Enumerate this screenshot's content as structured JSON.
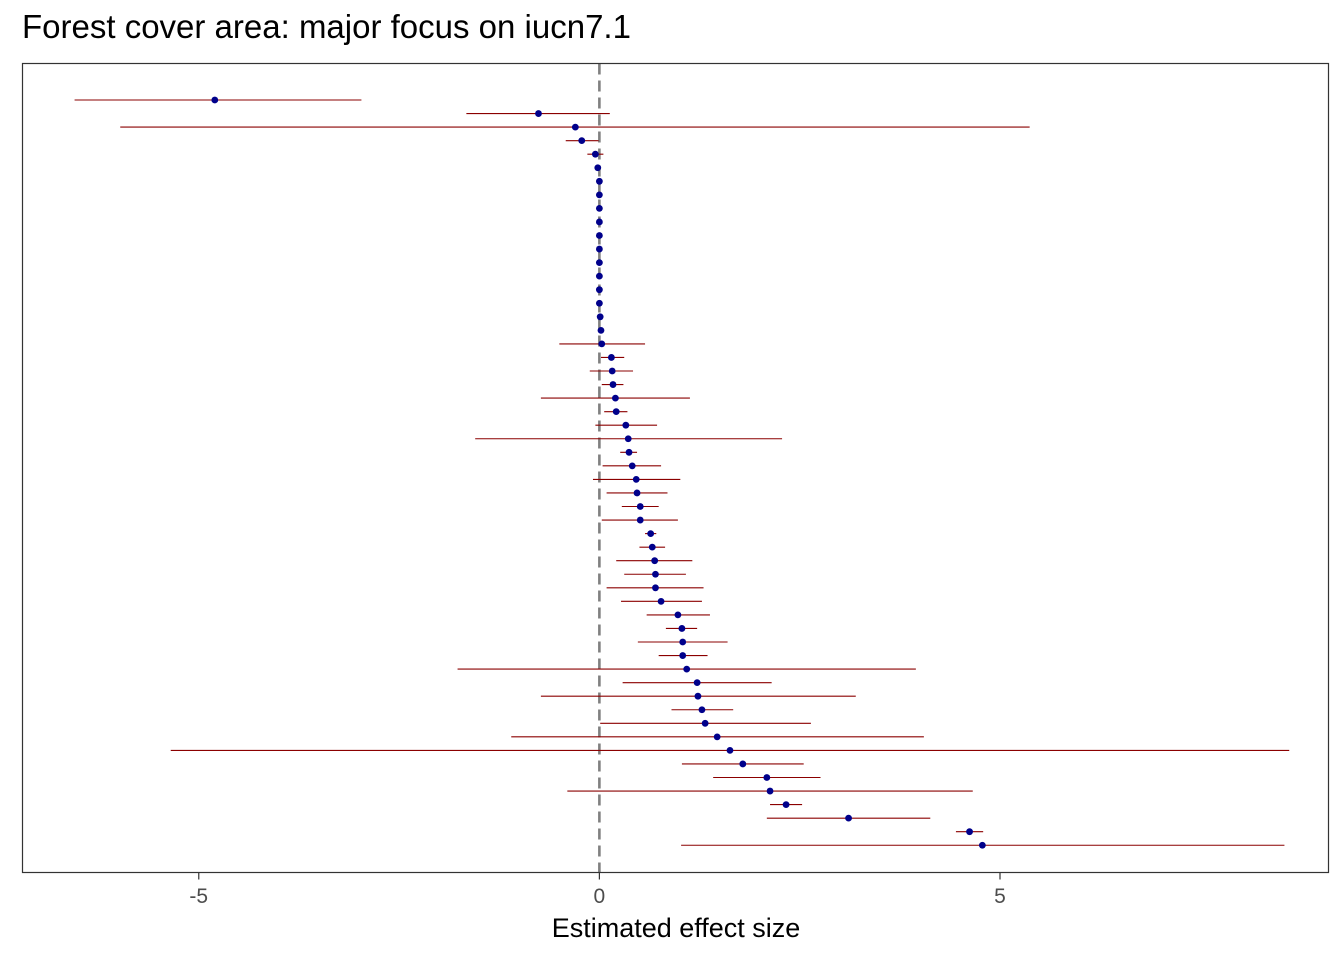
{
  "chart_data": {
    "type": "forest",
    "title": "Forest cover area: major focus on iucn7.1",
    "xlabel": "Estimated effect size",
    "ylabel": "",
    "xlim": [
      -7.2,
      9.1
    ],
    "xticks": [
      -5,
      0,
      5
    ],
    "xtick_labels": [
      "-5",
      "0",
      "5"
    ],
    "reference_line": 0,
    "grid": false,
    "colors": {
      "point": "#00008b",
      "interval": "#8b0000",
      "reference_line": "#808080",
      "panel_border": "#333333",
      "tick_label": "#4d4d4d"
    },
    "points": [
      {
        "estimate": -4.8,
        "lower": -6.55,
        "upper": -2.97
      },
      {
        "estimate": -0.76,
        "lower": -1.66,
        "upper": 0.13
      },
      {
        "estimate": -0.3,
        "lower": -5.98,
        "upper": 5.37
      },
      {
        "estimate": -0.22,
        "lower": -0.42,
        "upper": -0.01
      },
      {
        "estimate": -0.05,
        "lower": -0.15,
        "upper": 0.05
      },
      {
        "estimate": -0.02,
        "lower": -0.03,
        "upper": 0.0
      },
      {
        "estimate": 0.0,
        "lower": -0.01,
        "upper": 0.01
      },
      {
        "estimate": 0.0,
        "lower": -0.01,
        "upper": 0.01
      },
      {
        "estimate": 0.0,
        "lower": -0.01,
        "upper": 0.01
      },
      {
        "estimate": 0.0,
        "lower": -0.01,
        "upper": 0.01
      },
      {
        "estimate": 0.0,
        "lower": -0.01,
        "upper": 0.01
      },
      {
        "estimate": 0.0,
        "lower": -0.01,
        "upper": 0.01
      },
      {
        "estimate": 0.0,
        "lower": -0.01,
        "upper": 0.01
      },
      {
        "estimate": 0.0,
        "lower": -0.01,
        "upper": 0.01
      },
      {
        "estimate": 0.0,
        "lower": -0.01,
        "upper": 0.01
      },
      {
        "estimate": 0.0,
        "lower": -0.01,
        "upper": 0.01
      },
      {
        "estimate": 0.01,
        "lower": 0.0,
        "upper": 0.02
      },
      {
        "estimate": 0.02,
        "lower": 0.01,
        "upper": 0.03
      },
      {
        "estimate": 0.03,
        "lower": -0.5,
        "upper": 0.57
      },
      {
        "estimate": 0.15,
        "lower": 0.02,
        "upper": 0.31
      },
      {
        "estimate": 0.16,
        "lower": -0.12,
        "upper": 0.42
      },
      {
        "estimate": 0.17,
        "lower": 0.03,
        "upper": 0.3
      },
      {
        "estimate": 0.2,
        "lower": -0.73,
        "upper": 1.13
      },
      {
        "estimate": 0.21,
        "lower": 0.06,
        "upper": 0.35
      },
      {
        "estimate": 0.33,
        "lower": -0.05,
        "upper": 0.72
      },
      {
        "estimate": 0.36,
        "lower": -1.55,
        "upper": 2.28
      },
      {
        "estimate": 0.37,
        "lower": 0.26,
        "upper": 0.47
      },
      {
        "estimate": 0.41,
        "lower": 0.04,
        "upper": 0.77
      },
      {
        "estimate": 0.46,
        "lower": -0.08,
        "upper": 1.01
      },
      {
        "estimate": 0.47,
        "lower": 0.09,
        "upper": 0.85
      },
      {
        "estimate": 0.51,
        "lower": 0.28,
        "upper": 0.74
      },
      {
        "estimate": 0.51,
        "lower": 0.03,
        "upper": 0.98
      },
      {
        "estimate": 0.64,
        "lower": 0.57,
        "upper": 0.71
      },
      {
        "estimate": 0.66,
        "lower": 0.5,
        "upper": 0.82
      },
      {
        "estimate": 0.69,
        "lower": 0.21,
        "upper": 1.16
      },
      {
        "estimate": 0.7,
        "lower": 0.31,
        "upper": 1.08
      },
      {
        "estimate": 0.7,
        "lower": 0.09,
        "upper": 1.3
      },
      {
        "estimate": 0.77,
        "lower": 0.27,
        "upper": 1.28
      },
      {
        "estimate": 0.98,
        "lower": 0.59,
        "upper": 1.38
      },
      {
        "estimate": 1.03,
        "lower": 0.83,
        "upper": 1.22
      },
      {
        "estimate": 1.04,
        "lower": 0.48,
        "upper": 1.6
      },
      {
        "estimate": 1.04,
        "lower": 0.74,
        "upper": 1.35
      },
      {
        "estimate": 1.09,
        "lower": -1.77,
        "upper": 3.95
      },
      {
        "estimate": 1.22,
        "lower": 0.29,
        "upper": 2.15
      },
      {
        "estimate": 1.23,
        "lower": -0.73,
        "upper": 3.2
      },
      {
        "estimate": 1.28,
        "lower": 0.9,
        "upper": 1.67
      },
      {
        "estimate": 1.32,
        "lower": 0.01,
        "upper": 2.64
      },
      {
        "estimate": 1.47,
        "lower": -1.1,
        "upper": 4.05
      },
      {
        "estimate": 1.63,
        "lower": -5.35,
        "upper": 8.61
      },
      {
        "estimate": 1.79,
        "lower": 1.03,
        "upper": 2.55
      },
      {
        "estimate": 2.09,
        "lower": 1.42,
        "upper": 2.76
      },
      {
        "estimate": 2.13,
        "lower": -0.4,
        "upper": 4.66
      },
      {
        "estimate": 2.33,
        "lower": 2.13,
        "upper": 2.53
      },
      {
        "estimate": 3.11,
        "lower": 2.09,
        "upper": 4.13
      },
      {
        "estimate": 4.62,
        "lower": 4.45,
        "upper": 4.79
      },
      {
        "estimate": 4.78,
        "lower": 1.02,
        "upper": 8.55
      }
    ]
  }
}
